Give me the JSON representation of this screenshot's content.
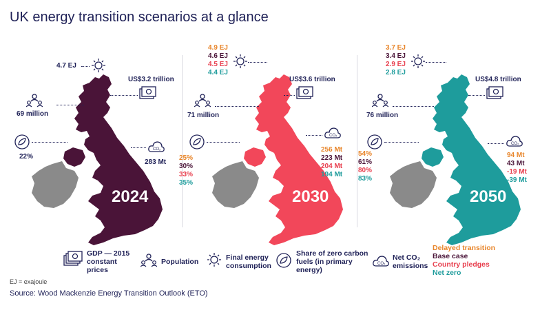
{
  "title": "UK energy transition scenarios at a glance",
  "colors": {
    "navy": "#1f2157",
    "map_2024": "#4a1438",
    "map_2030": "#f2475a",
    "map_2050": "#1e9c9c",
    "ireland": "#8a8a8a",
    "delayed": "#e8852a",
    "base": "#4a1438",
    "pledges": "#e8404f",
    "netzero": "#1e9c9c"
  },
  "panels": [
    {
      "year": "2024",
      "energy": [
        "4.7 EJ"
      ],
      "gdp": "US$3.2 trillion",
      "population": "69 million",
      "share": [
        "22%"
      ],
      "emissions": [
        "283 Mt"
      ]
    },
    {
      "year": "2030",
      "energy": [
        "4.9 EJ",
        "4.6 EJ",
        "4.5 EJ",
        "4.4 EJ"
      ],
      "gdp": "US$3.6 trillion",
      "population": "71 million",
      "share": [
        "25%",
        "30%",
        "33%",
        "35%"
      ],
      "emissions": [
        "256 Mt",
        "223 Mt",
        "204 Mt",
        "194 Mt"
      ]
    },
    {
      "year": "2050",
      "energy": [
        "3.7 EJ",
        "3.4 EJ",
        "2.9 EJ",
        "2.8 EJ"
      ],
      "gdp": "US$4.8 trillion",
      "population": "76 million",
      "share": [
        "54%",
        "61%",
        "80%",
        "83%"
      ],
      "emissions": [
        "94 Mt",
        "43 Mt",
        "-19 Mt",
        "-39 Mt"
      ]
    }
  ],
  "legend": {
    "gdp": [
      "GDP — 2015",
      "constant",
      "prices"
    ],
    "population": [
      "Population"
    ],
    "energy": [
      "Final energy",
      "consumption"
    ],
    "share": [
      "Share of zero carbon",
      "fuels (in primary",
      "energy)"
    ],
    "emissions": [
      "Net CO₂",
      "emissions"
    ],
    "scenarios": [
      "Delayed transition",
      "Base case",
      "Country pledges",
      "Net zero"
    ],
    "co2_icon_text": "CO₂"
  },
  "note": "EJ = exajoule",
  "source": "Source: Wood Mackenzie Energy Transition Outlook (ETO)"
}
